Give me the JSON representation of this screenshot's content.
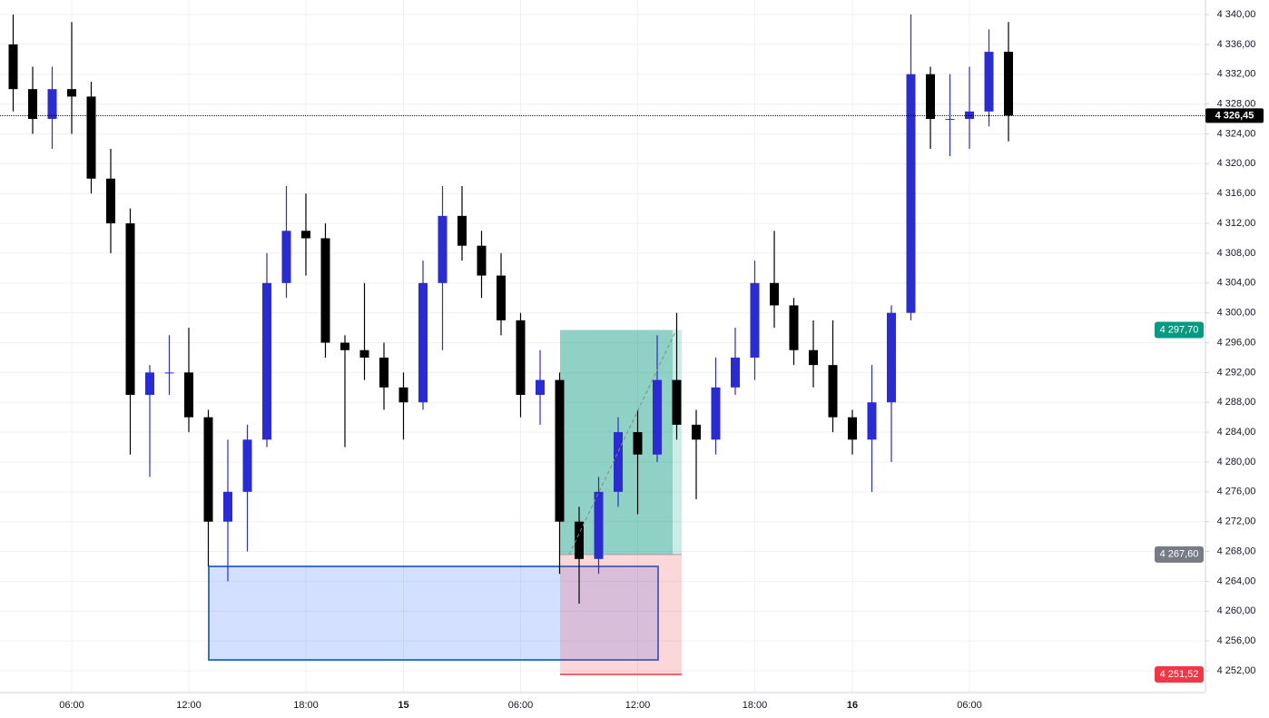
{
  "chart_data": {
    "type": "candlestick",
    "categories": [
      null,
      null,
      null,
      "06:00",
      null,
      null,
      null,
      null,
      null,
      "12:00",
      null,
      null,
      null,
      null,
      null,
      "18:00",
      null,
      null,
      null,
      null,
      "15",
      null,
      null,
      null,
      null,
      null,
      "06:00",
      null,
      null,
      null,
      null,
      null,
      "12:00",
      null,
      null,
      null,
      null,
      null,
      "18:00",
      null,
      null,
      null,
      null,
      "16",
      null,
      null,
      null,
      null,
      null,
      "06:00",
      null,
      null
    ],
    "open": [
      4336,
      4330,
      4326,
      4330,
      4329,
      4318,
      4312,
      4289,
      4292,
      4292,
      4286,
      4272,
      4276,
      4283,
      4304,
      4311,
      4310,
      4296,
      4295,
      4294,
      4290,
      4288,
      4304,
      4313,
      4309,
      4305,
      4299,
      4289,
      4291,
      4272,
      4267,
      4276,
      4284,
      4281,
      4291,
      4285,
      4283,
      4290,
      4294,
      4304,
      4301,
      4295,
      4293,
      4286,
      4283,
      4288,
      4300,
      4332,
      4326,
      4326,
      4327,
      4335
    ],
    "high": [
      4340,
      4333,
      4333,
      4339,
      4331,
      4322,
      4314,
      4293,
      4297,
      4298,
      4287,
      4283,
      4285,
      4308,
      4317,
      4316,
      4312,
      4297,
      4304,
      4296,
      4292,
      4307,
      4317,
      4317,
      4311,
      4308,
      4300,
      4295,
      4292,
      4274,
      4278,
      4286,
      4287,
      4297,
      4300,
      4287,
      4294,
      4298,
      4307,
      4311,
      4302,
      4299,
      4299,
      4287,
      4293,
      4301,
      4340,
      4333,
      4332,
      4333,
      4338,
      4339
    ],
    "low": [
      4327,
      4324,
      4322,
      4324,
      4316,
      4308,
      4281,
      4278,
      4289,
      4284,
      4266,
      4264,
      4268,
      4282,
      4302,
      4305,
      4294,
      4282,
      4291,
      4287,
      4283,
      4287,
      4295,
      4307,
      4302,
      4297,
      4286,
      4285,
      4265,
      4261,
      4265,
      4274,
      4273,
      4280,
      4283,
      4275,
      4281,
      4289,
      4291,
      4298,
      4293,
      4290,
      4284,
      4281,
      4276,
      4280,
      4299,
      4322,
      4321,
      4322,
      4325,
      4323
    ],
    "close": [
      4330,
      4326,
      4330,
      4329,
      4318,
      4312,
      4289,
      4292,
      4292,
      4286,
      4272,
      4276,
      4283,
      4304,
      4311,
      4310,
      4296,
      4295,
      4294,
      4290,
      4288,
      4304,
      4313,
      4309,
      4305,
      4299,
      4289,
      4291,
      4272,
      4267,
      4276,
      4284,
      4281,
      4291,
      4285,
      4283,
      4290,
      4294,
      4304,
      4301,
      4295,
      4293,
      4286,
      4283,
      4288,
      4300,
      4332,
      4326,
      4326,
      4327,
      4335,
      4326.45
    ],
    "up_color": "#2a2bd0",
    "down_color": "#000000",
    "ylim": [
      4249.08,
      4341.95
    ],
    "yticks": [
      {
        "value": 4252,
        "label": "4 252,00"
      },
      {
        "value": 4256,
        "label": "4 256,00"
      },
      {
        "value": 4260,
        "label": "4 260,00"
      },
      {
        "value": 4264,
        "label": "4 264,00"
      },
      {
        "value": 4268,
        "label": "4 268,00"
      },
      {
        "value": 4272,
        "label": "4 272,00"
      },
      {
        "value": 4276,
        "label": "4 276,00"
      },
      {
        "value": 4280,
        "label": "4 280,00"
      },
      {
        "value": 4284,
        "label": "4 284,00"
      },
      {
        "value": 4288,
        "label": "4 288,00"
      },
      {
        "value": 4292,
        "label": "4 292,00"
      },
      {
        "value": 4296,
        "label": "4 296,00"
      },
      {
        "value": 4300,
        "label": "4 300,00"
      },
      {
        "value": 4304,
        "label": "4 304,00"
      },
      {
        "value": 4308,
        "label": "4 308,00"
      },
      {
        "value": 4312,
        "label": "4 312,00"
      },
      {
        "value": 4316,
        "label": "4 316,00"
      },
      {
        "value": 4320,
        "label": "4 320,00"
      },
      {
        "value": 4324,
        "label": "4 324,00"
      },
      {
        "value": 4328,
        "label": "4 328,00"
      },
      {
        "value": 4332,
        "label": "4 332,00"
      },
      {
        "value": 4336,
        "label": "4 336,00"
      },
      {
        "value": 4340,
        "label": "4 340,00"
      }
    ],
    "grid": true,
    "last_price": {
      "value": 4326.45,
      "label": "4 326,45"
    },
    "position_tool": {
      "target": {
        "value": 4297.7,
        "label": "4 297,70"
      },
      "entry": {
        "value": 4267.6,
        "label": "4 267,60"
      },
      "stop": {
        "value": 4251.52,
        "label": "4 251,52"
      }
    }
  }
}
